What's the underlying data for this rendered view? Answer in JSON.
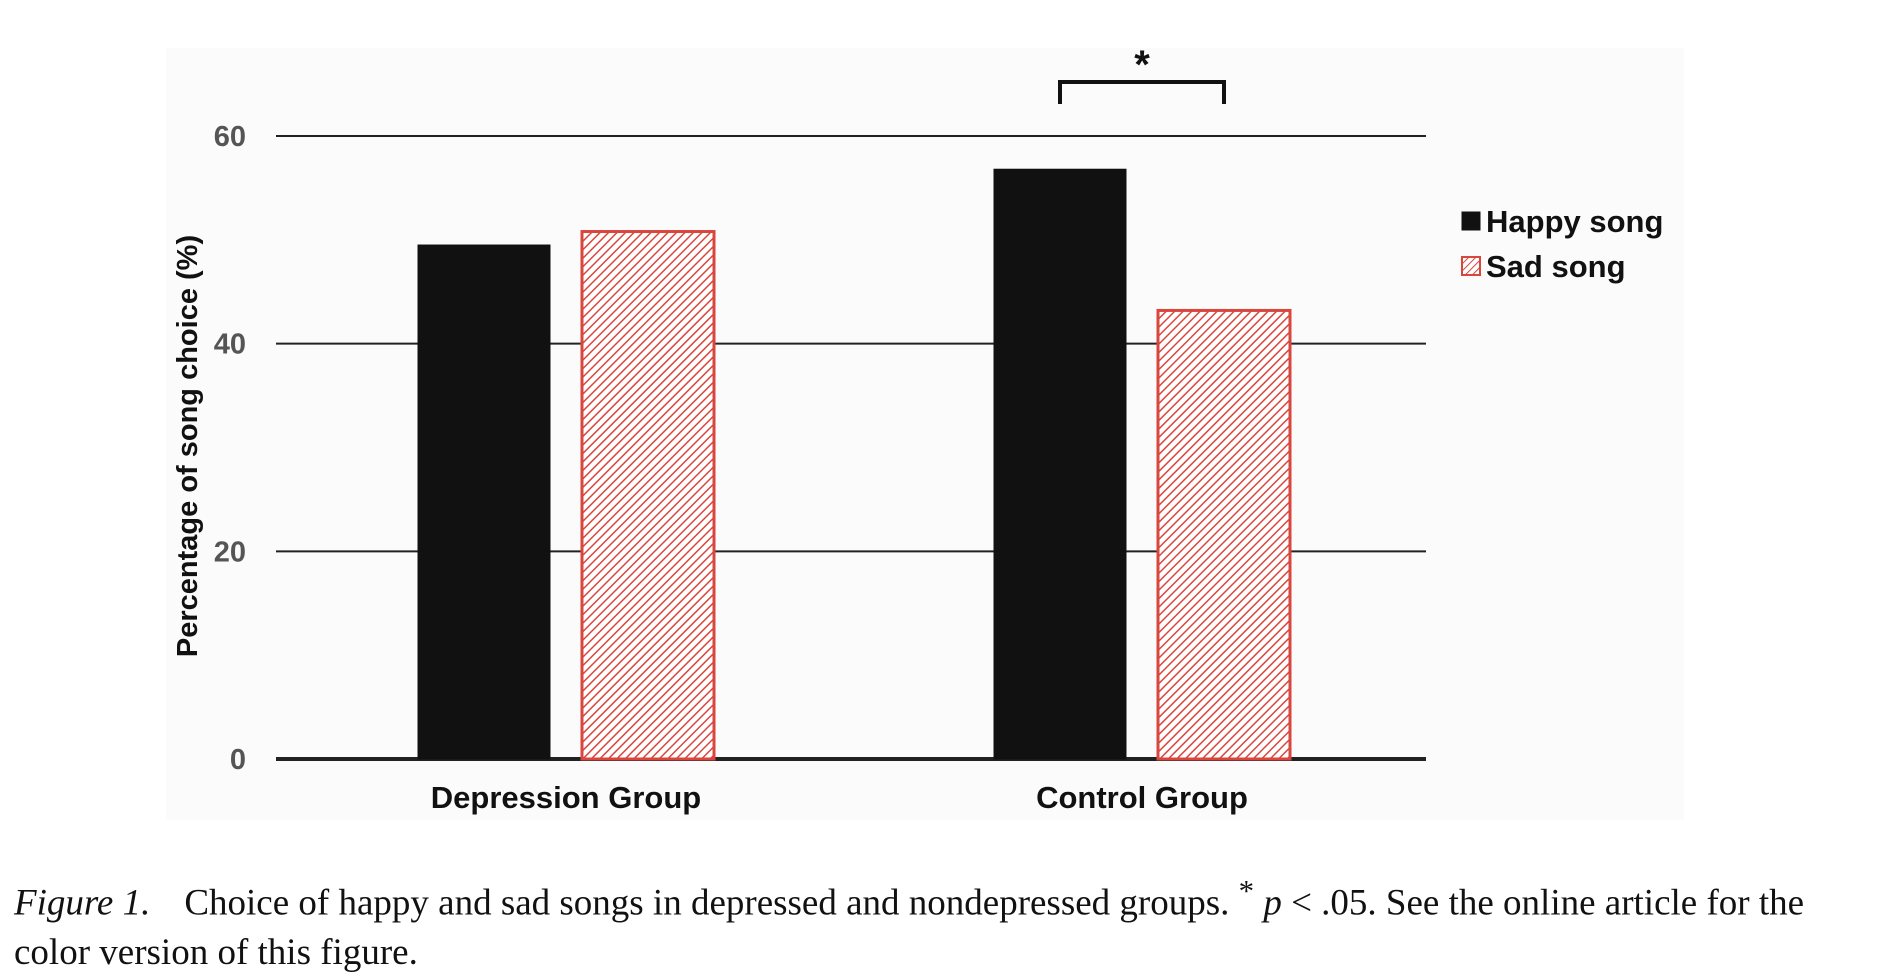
{
  "chart_data": {
    "type": "bar",
    "ylabel": "Percentage of song choice (%)",
    "xlabel": "",
    "ylim": [
      0,
      60
    ],
    "yticks": [
      0,
      20,
      40,
      60
    ],
    "grid": true,
    "legend_position": "right",
    "categories": [
      "Depression Group",
      "Control Group"
    ],
    "series": [
      {
        "name": "Happy song",
        "values": [
          49.5,
          56.8
        ],
        "color": "#111111",
        "pattern": "solid"
      },
      {
        "name": "Sad song",
        "values": [
          50.8,
          43.2
        ],
        "color": "#d9463d",
        "pattern": "diagonal-hatch"
      }
    ],
    "annotations": [
      {
        "text": "*",
        "type": "significance-bracket",
        "category": "Control Group"
      }
    ]
  },
  "caption": {
    "figure_number": "Figure 1.",
    "text_before_p": "Choice of happy and sad songs in depressed and nondepressed groups. ",
    "asterisk": "*",
    "p_symbol": "p",
    "text_after_p": " < .05. See the online article for the color version of this figure."
  }
}
